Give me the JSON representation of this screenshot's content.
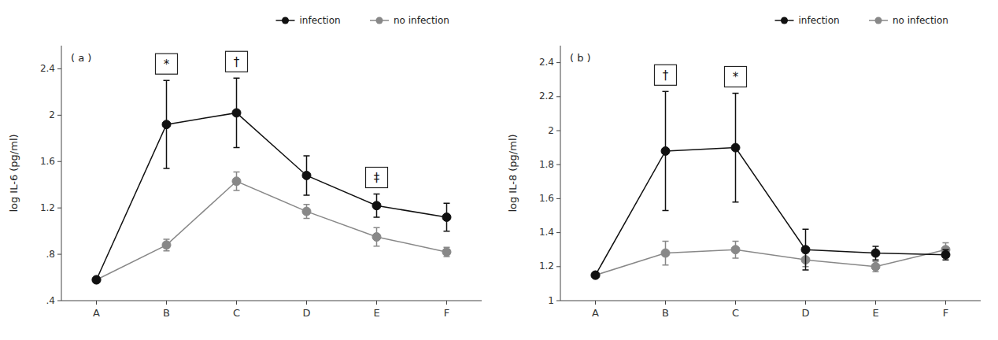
{
  "chart_data": [
    {
      "type": "line",
      "title": "( a )",
      "ylabel": "log IL-6 (pg/ml)",
      "categories": [
        "A",
        "B",
        "C",
        "D",
        "E",
        "F"
      ],
      "series": [
        {
          "name": "infection",
          "color": "#111111",
          "marker": "o",
          "line_style": "solid",
          "values": [
            0.58,
            1.92,
            2.02,
            1.48,
            1.22,
            1.12
          ],
          "errors": [
            0.0,
            0.38,
            0.3,
            0.17,
            0.1,
            0.12
          ]
        },
        {
          "name": "no infection",
          "color": "#888888",
          "marker": "o",
          "line_style": "solid",
          "values": [
            0.58,
            0.88,
            1.43,
            1.17,
            0.95,
            0.82
          ],
          "errors": [
            0.0,
            0.05,
            0.08,
            0.06,
            0.08,
            0.04
          ]
        }
      ],
      "ylim": [
        0.4,
        2.6
      ],
      "yticks": [
        {
          "value": 0.4,
          "label": ".4"
        },
        {
          "value": 0.8,
          "label": ".8"
        },
        1.2,
        1.6,
        2,
        2.4
      ],
      "grid": false,
      "legend": "upper right",
      "annotations": [
        {
          "text": "*",
          "category": "B"
        },
        {
          "text": "†",
          "category": "C"
        },
        {
          "text": "‡",
          "category": "E"
        }
      ]
    },
    {
      "type": "line",
      "title": "( b )",
      "ylabel": "log IL-8 (pg/ml)",
      "categories": [
        "A",
        "B",
        "C",
        "D",
        "E",
        "F"
      ],
      "series": [
        {
          "name": "infection",
          "color": "#111111",
          "marker": "o",
          "line_style": "solid",
          "values": [
            1.15,
            1.88,
            1.9,
            1.3,
            1.28,
            1.27
          ],
          "errors": [
            0.0,
            0.35,
            0.32,
            0.12,
            0.04,
            0.03
          ]
        },
        {
          "name": "no infection",
          "color": "#888888",
          "marker": "o",
          "line_style": "solid",
          "values": [
            1.15,
            1.28,
            1.3,
            1.24,
            1.2,
            1.3
          ],
          "errors": [
            0.0,
            0.07,
            0.05,
            0.04,
            0.03,
            0.04
          ]
        }
      ],
      "ylim": [
        1.0,
        2.5
      ],
      "yticks": [
        1,
        1.2,
        1.4,
        1.6,
        1.8,
        2,
        2.2,
        2.4
      ],
      "grid": false,
      "legend": "upper right",
      "annotations": [
        {
          "text": "†",
          "category": "B"
        },
        {
          "text": "*",
          "category": "C"
        }
      ]
    }
  ]
}
